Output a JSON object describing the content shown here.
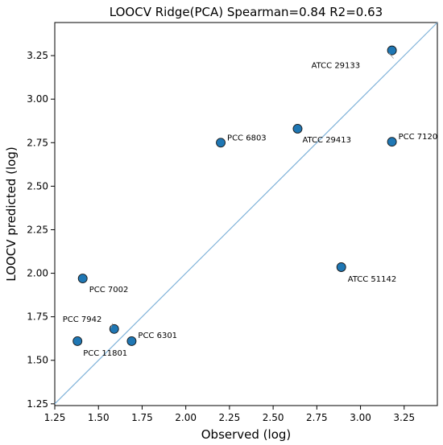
{
  "chart_data": {
    "type": "scatter",
    "title": "LOOCV Ridge(PCA)  Spearman=0.84  R2=0.63",
    "xlabel": "Observed (log)",
    "ylabel": "LOOCV predicted (log)",
    "xlim": [
      1.25,
      3.44
    ],
    "ylim": [
      1.24,
      3.44
    ],
    "x_ticks": [
      "1.25",
      "1.50",
      "1.75",
      "2.00",
      "2.25",
      "2.50",
      "2.75",
      "3.00",
      "3.25"
    ],
    "y_ticks": [
      "1.25",
      "1.50",
      "1.75",
      "2.00",
      "2.25",
      "2.50",
      "2.75",
      "3.00",
      "3.25"
    ],
    "reference_line": "y = x",
    "grid": false,
    "point_color": "#1f77b4",
    "line_color": "#7fb2d9",
    "points": [
      {
        "label": "ATCC 29133",
        "x": 3.18,
        "y": 3.28
      },
      {
        "label": "PCC 6803",
        "x": 2.2,
        "y": 2.75
      },
      {
        "label": "ATCC 29413",
        "x": 2.64,
        "y": 2.83
      },
      {
        "label": "PCC 7120",
        "x": 3.18,
        "y": 2.755
      },
      {
        "label": "ATCC 51142",
        "x": 2.89,
        "y": 2.035
      },
      {
        "label": "PCC 7002",
        "x": 1.41,
        "y": 1.97
      },
      {
        "label": "PCC 7942",
        "x": 1.59,
        "y": 1.68
      },
      {
        "label": "PCC 6301",
        "x": 1.69,
        "y": 1.61
      },
      {
        "label": "PCC 11801",
        "x": 1.38,
        "y": 1.61
      }
    ]
  }
}
